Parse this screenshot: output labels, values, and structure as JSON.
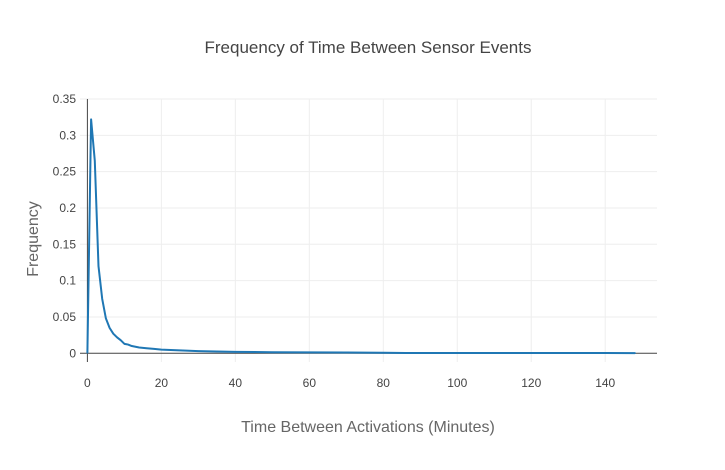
{
  "chart_data": {
    "type": "line",
    "title": "Frequency of Time Between Sensor Events",
    "xlabel": "Time Between Activations (Minutes)",
    "ylabel": "Frequency",
    "xlim": [
      -2,
      154
    ],
    "ylim": [
      -0.012,
      0.35
    ],
    "xticks": [
      0,
      20,
      40,
      60,
      80,
      100,
      120,
      140
    ],
    "yticks": [
      0,
      0.05,
      0.1,
      0.15,
      0.2,
      0.25,
      0.3,
      0.35
    ],
    "ytick_labels": [
      "0",
      "0.05",
      "0.1",
      "0.15",
      "0.2",
      "0.25",
      "0.3",
      "0.35"
    ],
    "grid": true,
    "colors": {
      "line": "#1f77b4"
    },
    "series": [
      {
        "x": [
          0,
          1,
          2,
          3,
          4,
          5,
          6,
          7,
          8,
          9,
          10,
          11,
          12,
          14,
          16,
          18,
          20,
          25,
          30,
          35,
          40,
          50,
          60,
          70,
          80,
          86,
          90,
          100,
          110,
          120,
          130,
          140,
          148
        ],
        "y": [
          0.001,
          0.322,
          0.265,
          0.12,
          0.075,
          0.048,
          0.035,
          0.027,
          0.022,
          0.018,
          0.013,
          0.012,
          0.01,
          0.008,
          0.007,
          0.006,
          0.005,
          0.004,
          0.003,
          0.0025,
          0.002,
          0.0015,
          0.0012,
          0.001,
          0.0008,
          0.0004,
          0.0004,
          0.0004,
          0.0003,
          0.0003,
          0.0003,
          0.0003,
          0.0002
        ]
      }
    ]
  }
}
